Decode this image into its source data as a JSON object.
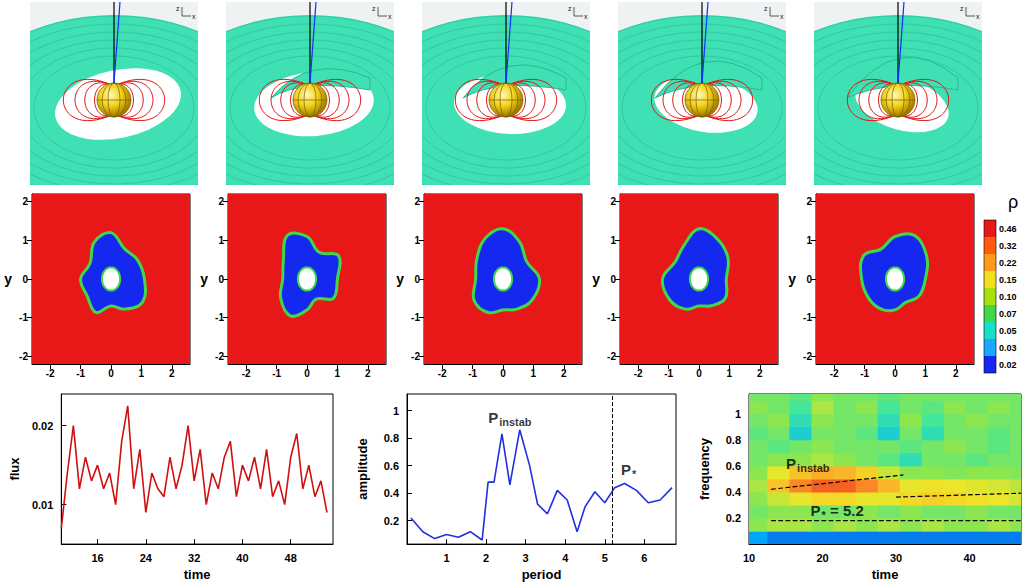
{
  "renderings": {
    "panels": 5,
    "axis_triad_labels": [
      "z",
      "x"
    ]
  },
  "density_maps": {
    "xlim": [
      -2.6,
      2.6
    ],
    "xticks": [
      -2,
      -1,
      0,
      1,
      2
    ],
    "ylim": [
      -2.2,
      2.2
    ],
    "yticks": [
      -2,
      -1,
      0,
      1,
      2
    ],
    "ylabel": "y",
    "star_radius": 0.3,
    "disk_density": 0.46,
    "edge_density": 0.07,
    "cavity_density": 0.02,
    "panels": [
      {
        "cavity_radii": [
          1.1,
          1.0,
          0.9,
          1.2,
          1.1,
          0.8,
          1.0,
          0.9,
          1.0,
          0.7,
          0.9,
          1.2
        ]
      },
      {
        "cavity_radii": [
          1.0,
          1.2,
          0.8,
          1.1,
          1.3,
          0.9,
          0.8,
          1.0,
          1.1,
          0.8,
          0.6,
          1.0
        ]
      },
      {
        "cavity_radii": [
          1.2,
          0.9,
          1.1,
          1.3,
          1.2,
          1.0,
          0.9,
          1.1,
          1.0,
          0.8,
          0.9,
          1.1
        ]
      },
      {
        "cavity_radii": [
          0.9,
          1.1,
          1.2,
          1.3,
          1.0,
          0.9,
          1.2,
          1.1,
          0.9,
          0.7,
          0.8,
          1.0
        ]
      },
      {
        "cavity_radii": [
          1.0,
          1.2,
          1.3,
          1.1,
          0.9,
          1.2,
          1.1,
          1.0,
          0.9,
          0.8,
          0.7,
          0.9
        ]
      }
    ],
    "colorbar": {
      "label": "ρ",
      "ticks": [
        0.46,
        0.32,
        0.22,
        0.15,
        {
          "value": 0.1,
          "label": "0.10"
        },
        0.07,
        0.05,
        0.03,
        0.02
      ],
      "colors": [
        "#e81818",
        "#ff5a10",
        "#ff9a18",
        "#f2e020",
        "#a8e010",
        "#40d848",
        "#18e0c8",
        "#18a8ff",
        "#1428f0"
      ]
    }
  },
  "chart_data": [
    {
      "type": "line",
      "xlabel": "time",
      "ylabel": "flux",
      "color": "#d01010",
      "line_style": "solid",
      "xlim": [
        10,
        55
      ],
      "xticks": [
        16,
        24,
        32,
        40,
        48
      ],
      "ylim": [
        0.005,
        0.024
      ],
      "yticks": [
        0.01,
        0.02
      ],
      "x": [
        10,
        11,
        12,
        13,
        14,
        15,
        16,
        17,
        18,
        19,
        20,
        21,
        22,
        23,
        24,
        25,
        26,
        27,
        28,
        29,
        30,
        31,
        32,
        33,
        34,
        35,
        36,
        37,
        38,
        39,
        40,
        41,
        42,
        43,
        44,
        45,
        46,
        47,
        48,
        49,
        50,
        51,
        52,
        53,
        54
      ],
      "values": [
        0.007,
        0.014,
        0.02,
        0.012,
        0.016,
        0.013,
        0.015,
        0.012,
        0.014,
        0.01,
        0.018,
        0.0225,
        0.012,
        0.017,
        0.009,
        0.014,
        0.012,
        0.011,
        0.016,
        0.012,
        0.015,
        0.02,
        0.013,
        0.017,
        0.01,
        0.014,
        0.012,
        0.016,
        0.018,
        0.011,
        0.015,
        0.013,
        0.016,
        0.012,
        0.017,
        0.011,
        0.013,
        0.01,
        0.016,
        0.019,
        0.012,
        0.015,
        0.011,
        0.013,
        0.009
      ],
      "grid": false
    },
    {
      "type": "line",
      "xlabel": "period",
      "ylabel": "amplitude",
      "color": "#2030e0",
      "line_style": "solid",
      "xlim": [
        0,
        6.8
      ],
      "xticks": [
        1,
        2,
        3,
        4,
        5,
        6
      ],
      "ylim": [
        0.03,
        1.12
      ],
      "yticks": [
        0.2,
        0.4,
        0.6,
        0.8,
        1
      ],
      "x": [
        0.1,
        0.4,
        0.7,
        1.0,
        1.3,
        1.6,
        1.9,
        2.05,
        2.2,
        2.4,
        2.6,
        2.85,
        3.1,
        3.3,
        3.55,
        3.8,
        4.05,
        4.3,
        4.5,
        4.75,
        5.0,
        5.25,
        5.5,
        5.8,
        6.1,
        6.4,
        6.7
      ],
      "values": [
        0.22,
        0.12,
        0.07,
        0.1,
        0.08,
        0.12,
        0.06,
        0.48,
        0.48,
        0.83,
        0.46,
        0.86,
        0.6,
        0.32,
        0.25,
        0.42,
        0.35,
        0.12,
        0.3,
        0.41,
        0.33,
        0.44,
        0.47,
        0.42,
        0.33,
        0.35,
        0.44
      ],
      "vlines": [
        {
          "x": 5.2,
          "line_style": "dashed"
        }
      ],
      "annotations": [
        {
          "text": "P",
          "sub": "instab",
          "x": 2.6,
          "y": 0.95
        },
        {
          "text": "P",
          "sub": "*",
          "x": 5.6,
          "y": 0.57
        }
      ],
      "grid": false
    },
    {
      "type": "heatmap",
      "xlabel": "time",
      "ylabel": "frequency",
      "xlim": [
        10,
        47
      ],
      "xticks": [
        10,
        20,
        30,
        40
      ],
      "ylim": [
        0,
        1.15
      ],
      "yticks": [
        0.2,
        0.4,
        0.6,
        0.8,
        1
      ],
      "x": [
        11,
        14,
        17,
        20,
        23,
        26,
        29,
        32,
        35,
        38,
        41,
        44,
        47
      ],
      "y": [
        0.05,
        0.15,
        0.25,
        0.35,
        0.45,
        0.55,
        0.65,
        0.75,
        0.85,
        0.95,
        1.05,
        1.15
      ],
      "z": [
        [
          0.15,
          0.1,
          0.1,
          0.1,
          0.1,
          0.1,
          0.1,
          0.1,
          0.1,
          0.1,
          0.1,
          0.1,
          0.1
        ],
        [
          0.5,
          0.55,
          0.55,
          0.5,
          0.55,
          0.5,
          0.55,
          0.5,
          0.55,
          0.5,
          0.5,
          0.55,
          0.5
        ],
        [
          0.45,
          0.5,
          0.5,
          0.45,
          0.45,
          0.5,
          0.45,
          0.5,
          0.45,
          0.45,
          0.5,
          0.45,
          0.45
        ],
        [
          0.5,
          0.6,
          0.65,
          0.7,
          0.7,
          0.65,
          0.65,
          0.7,
          0.72,
          0.7,
          0.68,
          0.66,
          0.62
        ],
        [
          0.55,
          0.75,
          0.88,
          0.95,
          0.95,
          0.88,
          0.78,
          0.65,
          0.68,
          0.66,
          0.64,
          0.62,
          0.58
        ],
        [
          0.5,
          0.65,
          0.75,
          0.8,
          0.78,
          0.72,
          0.6,
          0.5,
          0.5,
          0.48,
          0.5,
          0.5,
          0.48
        ],
        [
          0.45,
          0.5,
          0.5,
          0.55,
          0.5,
          0.45,
          0.4,
          0.3,
          0.45,
          0.45,
          0.4,
          0.45,
          0.45
        ],
        [
          0.45,
          0.4,
          0.45,
          0.5,
          0.45,
          0.45,
          0.45,
          0.4,
          0.45,
          0.5,
          0.45,
          0.4,
          0.45
        ],
        [
          0.4,
          0.45,
          0.25,
          0.45,
          0.45,
          0.4,
          0.25,
          0.45,
          0.3,
          0.45,
          0.45,
          0.4,
          0.45
        ],
        [
          0.45,
          0.5,
          0.3,
          0.5,
          0.45,
          0.45,
          0.3,
          0.5,
          0.35,
          0.45,
          0.5,
          0.45,
          0.45
        ],
        [
          0.5,
          0.45,
          0.35,
          0.55,
          0.45,
          0.5,
          0.35,
          0.45,
          0.4,
          0.5,
          0.45,
          0.5,
          0.45
        ],
        [
          0.45,
          0.45,
          0.4,
          0.5,
          0.45,
          0.45,
          0.4,
          0.45,
          0.45,
          0.45,
          0.45,
          0.45,
          0.45
        ]
      ],
      "zlim": [
        0,
        1
      ],
      "colors": [
        "#0a28d8",
        "#00b4ff",
        "#3ce6a0",
        "#8ce650",
        "#f0e628",
        "#ffa028",
        "#f0461e"
      ],
      "lines": [
        {
          "x": [
            13,
            31
          ],
          "y": [
            0.42,
            0.53
          ],
          "line_style": "dashed"
        },
        {
          "x": [
            30,
            47
          ],
          "y": [
            0.36,
            0.39
          ],
          "line_style": "dashed"
        },
        {
          "x": [
            13,
            47
          ],
          "y": [
            0.18,
            0.18
          ],
          "line_style": "dashed"
        }
      ],
      "annotations": [
        {
          "text": "P",
          "sub": "instab",
          "x": 18,
          "y": 0.62
        },
        {
          "text": "P",
          "sub": "*",
          "suffix": " = 5.2",
          "x": 22,
          "y": 0.26
        }
      ],
      "grid": false
    }
  ]
}
